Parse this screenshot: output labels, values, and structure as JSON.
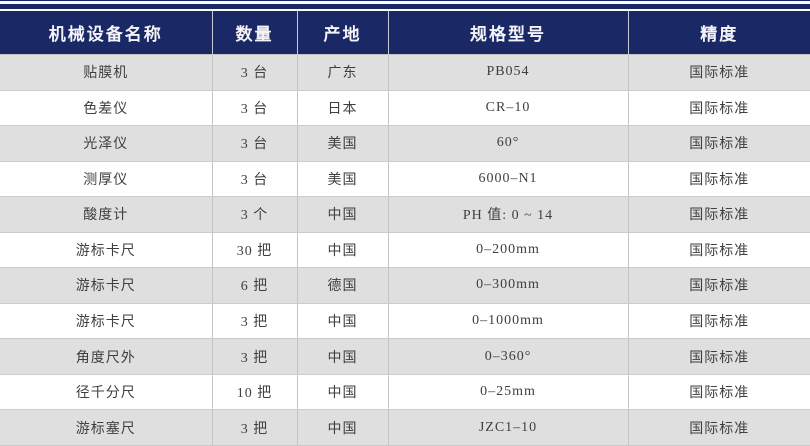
{
  "colors": {
    "accent_navy": "#1a2866",
    "header_text": "#f4f4f8",
    "body_text": "#3f3f3f",
    "row_odd_bg": "#dfdfdf",
    "row_even_bg": "#ffffff",
    "grid_line": "#c4c4c4"
  },
  "table": {
    "columns": [
      "机械设备名称",
      "数量",
      "产地",
      "规格型号",
      "精度"
    ],
    "rows": [
      [
        "贴膜机",
        "3 台",
        "广东",
        "PB054",
        "国际标准"
      ],
      [
        "色差仪",
        "3 台",
        "日本",
        "CR–10",
        "国际标准"
      ],
      [
        "光泽仪",
        "3 台",
        "美国",
        "60°",
        "国际标准"
      ],
      [
        "测厚仪",
        "3 台",
        "美国",
        "6000–N1",
        "国际标准"
      ],
      [
        "酸度计",
        "3 个",
        "中国",
        "PH 值: 0 ~ 14",
        "国际标准"
      ],
      [
        "游标卡尺",
        "30 把",
        "中国",
        "0–200mm",
        "国际标准"
      ],
      [
        "游标卡尺",
        "6 把",
        "德国",
        "0–300mm",
        "国际标准"
      ],
      [
        "游标卡尺",
        "3 把",
        "中国",
        "0–1000mm",
        "国际标准"
      ],
      [
        "角度尺外",
        "3 把",
        "中国",
        "0–360°",
        "国际标准"
      ],
      [
        "径千分尺",
        "10 把",
        "中国",
        "0–25mm",
        "国际标准"
      ],
      [
        "游标塞尺",
        "3 把",
        "中国",
        "JZC1–10",
        "国际标准"
      ]
    ]
  },
  "chart_data": {
    "type": "table",
    "title": "",
    "columns": [
      "机械设备名称",
      "数量",
      "产地",
      "规格型号",
      "精度"
    ],
    "rows": [
      [
        "贴膜机",
        "3 台",
        "广东",
        "PB054",
        "国际标准"
      ],
      [
        "色差仪",
        "3 台",
        "日本",
        "CR–10",
        "国际标准"
      ],
      [
        "光泽仪",
        "3 台",
        "美国",
        "60°",
        "国际标准"
      ],
      [
        "测厚仪",
        "3 台",
        "美国",
        "6000–N1",
        "国际标准"
      ],
      [
        "酸度计",
        "3 个",
        "中国",
        "PH 值: 0 ~ 14",
        "国际标准"
      ],
      [
        "游标卡尺",
        "30 把",
        "中国",
        "0–200mm",
        "国际标准"
      ],
      [
        "游标卡尺",
        "6 把",
        "德国",
        "0–300mm",
        "国际标准"
      ],
      [
        "游标卡尺",
        "3 把",
        "中国",
        "0–1000mm",
        "国际标准"
      ],
      [
        "角度尺外",
        "3 把",
        "中国",
        "0–360°",
        "国际标准"
      ],
      [
        "径千分尺",
        "10 把",
        "中国",
        "0–25mm",
        "国际标准"
      ],
      [
        "游标塞尺",
        "3 把",
        "中国",
        "JZC1–10",
        "国际标准"
      ]
    ]
  }
}
